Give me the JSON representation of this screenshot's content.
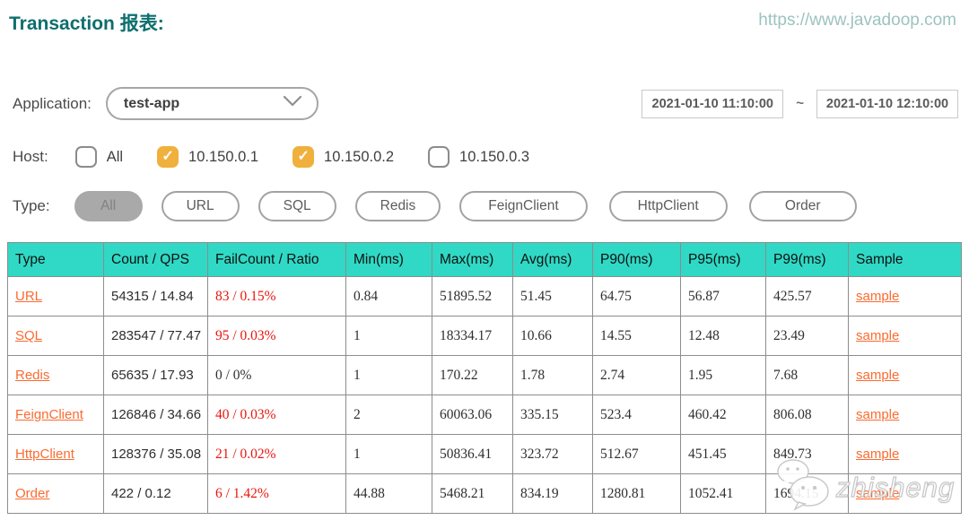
{
  "header": {
    "title": "Transaction 报表:",
    "site_url": "https://www.javadoop.com"
  },
  "filters": {
    "application": {
      "label": "Application:",
      "value": "test-app"
    },
    "date_range": {
      "start": "2021-01-10 11:10:00",
      "separator": "~",
      "end": "2021-01-10 12:10:00"
    },
    "host": {
      "label": "Host:",
      "options": [
        {
          "label": "All",
          "checked": false
        },
        {
          "label": "10.150.0.1",
          "checked": true
        },
        {
          "label": "10.150.0.2",
          "checked": true
        },
        {
          "label": "10.150.0.3",
          "checked": false
        }
      ]
    },
    "type": {
      "label": "Type:",
      "options": [
        {
          "label": "All",
          "selected": true
        },
        {
          "label": "URL",
          "selected": false
        },
        {
          "label": "SQL",
          "selected": false
        },
        {
          "label": "Redis",
          "selected": false
        },
        {
          "label": "FeignClient",
          "selected": false
        },
        {
          "label": "HttpClient",
          "selected": false
        },
        {
          "label": "Order",
          "selected": false
        }
      ]
    }
  },
  "table": {
    "columns": [
      "Type",
      "Count / QPS",
      "FailCount / Ratio",
      "Min(ms)",
      "Max(ms)",
      "Avg(ms)",
      "P90(ms)",
      "P95(ms)",
      "P99(ms)",
      "Sample"
    ],
    "rows": [
      {
        "type": "URL",
        "count_qps": "54315 / 14.84",
        "fail": "83 / 0.15%",
        "fail_red": true,
        "min": "0.84",
        "max": "51895.52",
        "avg": "51.45",
        "p90": "64.75",
        "p95": "56.87",
        "p99": "425.57",
        "sample": "sample"
      },
      {
        "type": "SQL",
        "count_qps": "283547 / 77.47",
        "fail": "95 / 0.03%",
        "fail_red": true,
        "min": "1",
        "max": "18334.17",
        "avg": "10.66",
        "p90": "14.55",
        "p95": "12.48",
        "p99": "23.49",
        "sample": "sample"
      },
      {
        "type": "Redis",
        "count_qps": "65635 / 17.93",
        "fail": "0 / 0%",
        "fail_red": false,
        "min": "1",
        "max": "170.22",
        "avg": "1.78",
        "p90": "2.74",
        "p95": "1.95",
        "p99": "7.68",
        "sample": "sample"
      },
      {
        "type": "FeignClient",
        "count_qps": "126846 / 34.66",
        "fail": "40 / 0.03%",
        "fail_red": true,
        "min": "2",
        "max": "60063.06",
        "avg": "335.15",
        "p90": "523.4",
        "p95": "460.42",
        "p99": "806.08",
        "sample": "sample"
      },
      {
        "type": "HttpClient",
        "count_qps": "128376 / 35.08",
        "fail": "21 / 0.02%",
        "fail_red": true,
        "min": "1",
        "max": "50836.41",
        "avg": "323.72",
        "p90": "512.67",
        "p95": "451.45",
        "p99": "849.73",
        "sample": "sample"
      },
      {
        "type": "Order",
        "count_qps": "422 / 0.12",
        "fail": "6 / 1.42%",
        "fail_red": true,
        "min": "44.88",
        "max": "5468.21",
        "avg": "834.19",
        "p90": "1280.81",
        "p95": "1052.41",
        "p99": "1694.15",
        "sample": "sample"
      }
    ]
  },
  "watermark": {
    "text": "zhisheng"
  },
  "colors": {
    "title_teal": "#0d6e6e",
    "url_teal": "#9dc3bf",
    "checkbox_orange": "#f0b03c",
    "table_header_teal": "#2fd9c5",
    "link_orange": "#fb6b30",
    "fail_red": "#e8150d"
  }
}
